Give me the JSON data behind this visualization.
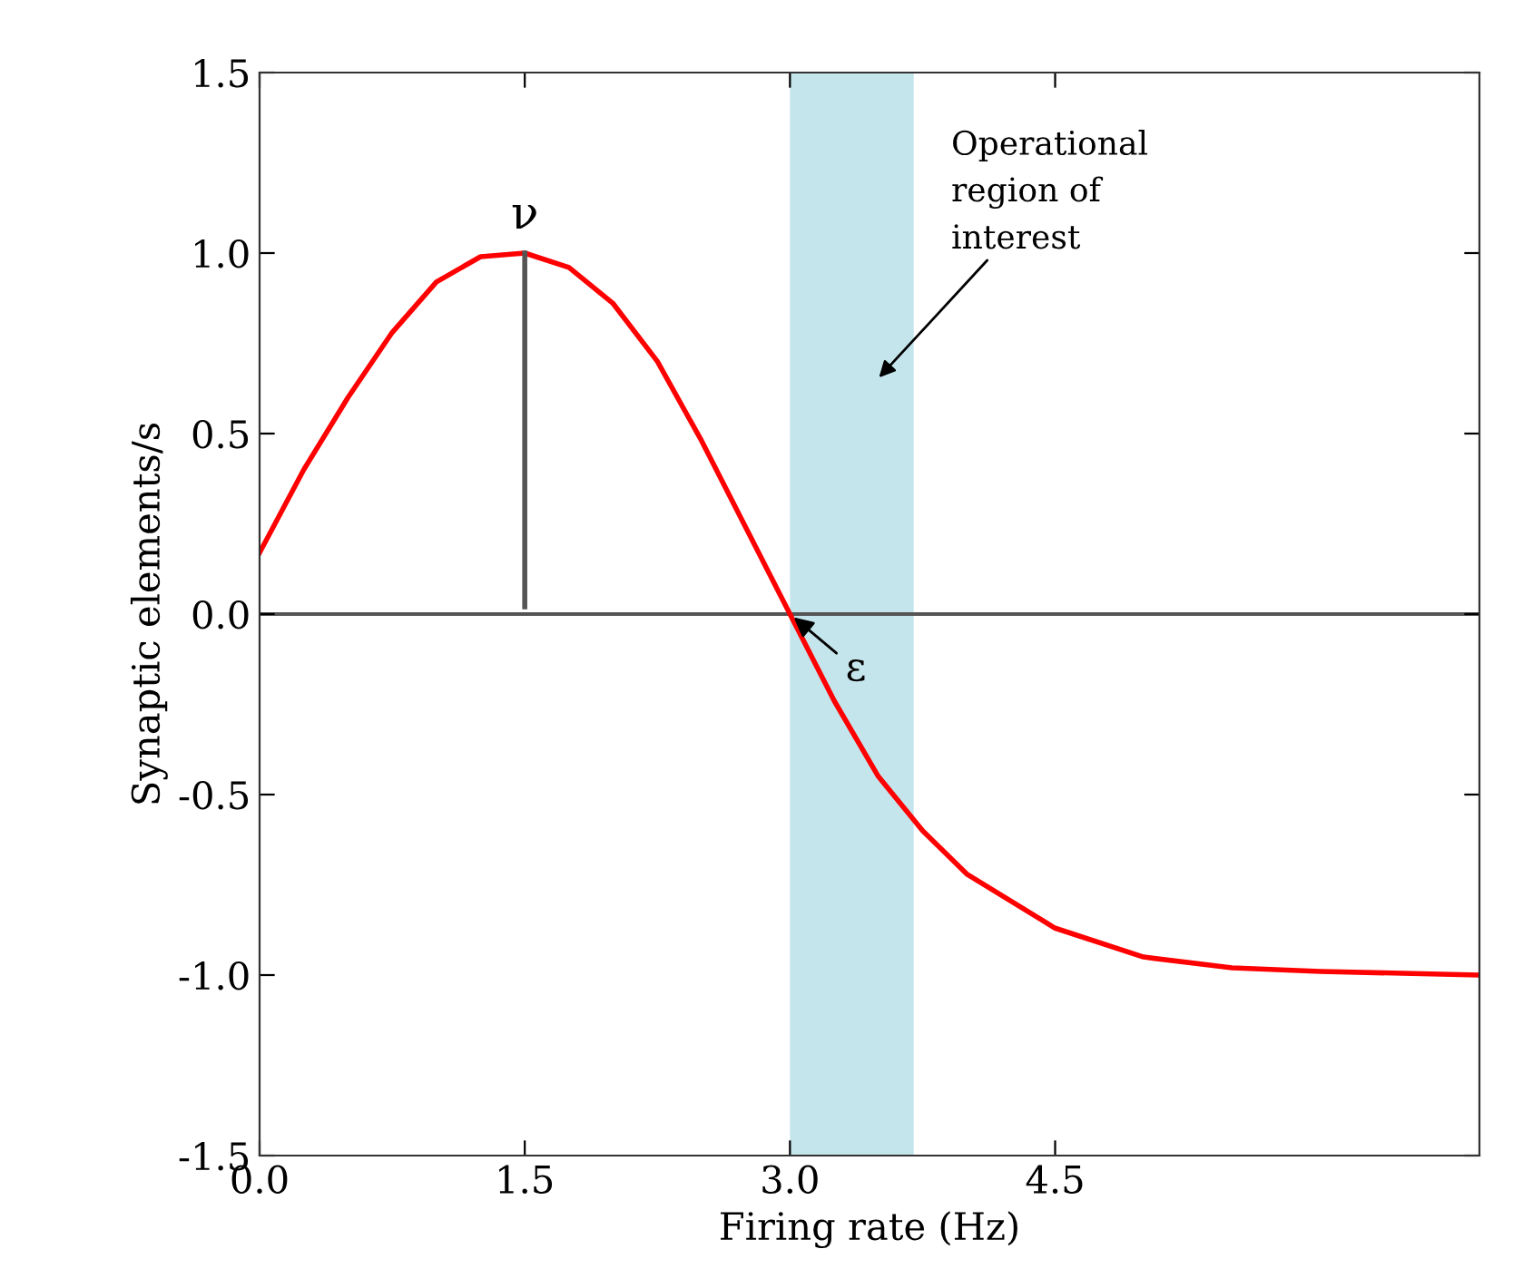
{
  "chart_data": {
    "type": "line",
    "xlabel": "Firing rate (Hz)",
    "ylabel": "Synaptic elements/s",
    "xlim": [
      0.0,
      6.9
    ],
    "xticks": [
      {
        "value": 0,
        "label": "0.0"
      },
      1.5,
      {
        "value": 3,
        "label": "3.0"
      },
      4.5
    ],
    "ylim": [
      -1.5,
      1.5
    ],
    "yticks": [
      -1.5,
      {
        "value": -1,
        "label": "-1.0"
      },
      -0.5,
      {
        "value": 0,
        "label": "0.0"
      },
      0.5,
      {
        "value": 1,
        "label": "1.0"
      },
      1.5
    ],
    "grid": false,
    "series": [
      {
        "color": "#ff0000",
        "x": [
          0.0,
          0.25,
          0.5,
          0.75,
          1.0,
          1.25,
          1.5,
          1.75,
          2.0,
          2.25,
          2.5,
          2.75,
          3.0,
          3.25,
          3.5,
          3.75,
          4.0,
          4.5,
          5.0,
          5.5,
          6.0,
          6.9
        ],
        "values": [
          0.17,
          0.4,
          0.6,
          0.78,
          0.92,
          0.99,
          1.0,
          0.96,
          0.86,
          0.7,
          0.48,
          0.24,
          0.0,
          -0.24,
          -0.45,
          -0.6,
          -0.72,
          -0.87,
          -0.95,
          -0.98,
          -0.99,
          -1.0
        ]
      },
      {
        "color": "#555555",
        "x": [
          1.5,
          1.5
        ],
        "values": [
          0.02,
          1.0
        ]
      }
    ],
    "ref_lines": [
      {
        "axis": "y",
        "value": 0.0,
        "color": "#555555"
      }
    ],
    "bands": [
      {
        "axis": "x",
        "from": 3.0,
        "to": 3.7,
        "color": "#c5e5ec"
      }
    ],
    "annotations": [
      {
        "text": "ν",
        "x": 1.5,
        "y": 1.0
      },
      {
        "text": "ε",
        "x": 3.0,
        "y": 0.0
      },
      "Operational\nregion of\ninterest"
    ]
  }
}
